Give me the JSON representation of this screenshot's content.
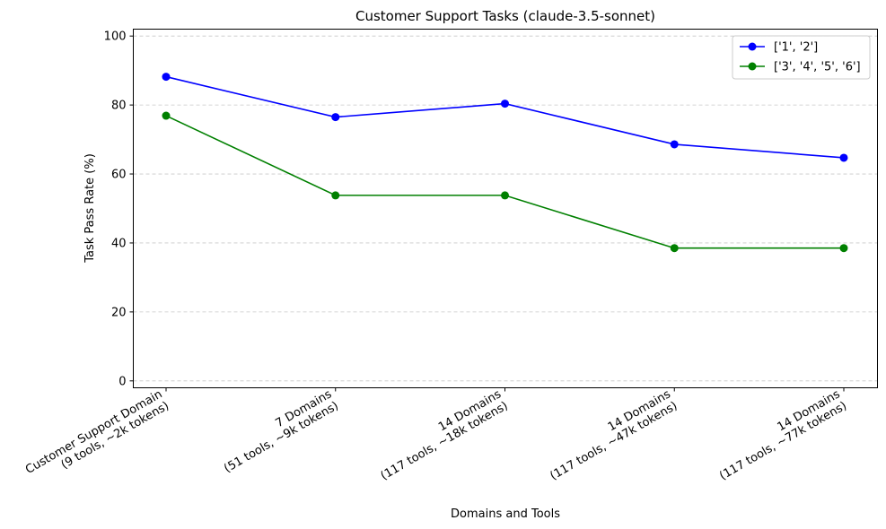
{
  "chart_data": {
    "type": "line",
    "title": "Customer Support Tasks (claude-3.5-sonnet)",
    "xlabel": "Domains and Tools",
    "ylabel": "Task Pass Rate (%)",
    "categories": [
      [
        "Customer Support Domain",
        "(9 tools, ~2k tokens)"
      ],
      [
        "7 Domains",
        "(51 tools, ~9k tokens)"
      ],
      [
        "14 Domains",
        "(117 tools, ~18k tokens)"
      ],
      [
        "14 Domains",
        "(117 tools, ~47k tokens)"
      ],
      [
        "14 Domains",
        "(117 tools, ~77k tokens)"
      ]
    ],
    "ylim": [
      -2,
      102
    ],
    "yticks": [
      0,
      20,
      40,
      60,
      80,
      100
    ],
    "grid": "y-dashed",
    "legend_position": "top-right",
    "series": [
      {
        "name": "['1', '2']",
        "color": "#0000ff",
        "values": [
          88.2,
          76.5,
          80.4,
          68.6,
          64.7
        ]
      },
      {
        "name": "['3', '4', '5', '6']",
        "color": "#008000",
        "values": [
          76.9,
          53.8,
          53.8,
          38.5,
          38.5
        ]
      }
    ]
  }
}
